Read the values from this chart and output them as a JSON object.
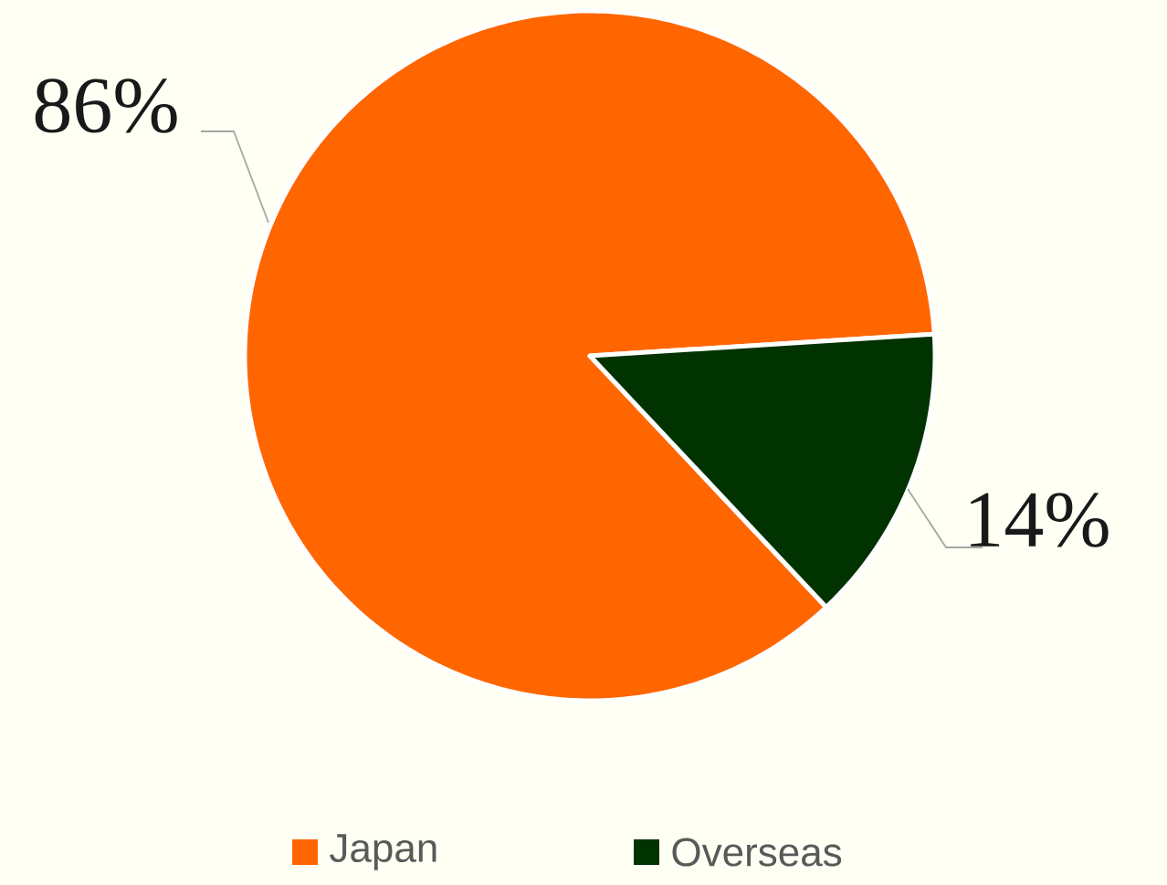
{
  "chart_data": {
    "type": "pie",
    "categories": [
      "Japan",
      "Overseas"
    ],
    "values": [
      86,
      14
    ],
    "colors": [
      "#ff6600",
      "#003300"
    ],
    "value_labels": [
      "86%",
      "14%"
    ],
    "legend": "bottom"
  }
}
